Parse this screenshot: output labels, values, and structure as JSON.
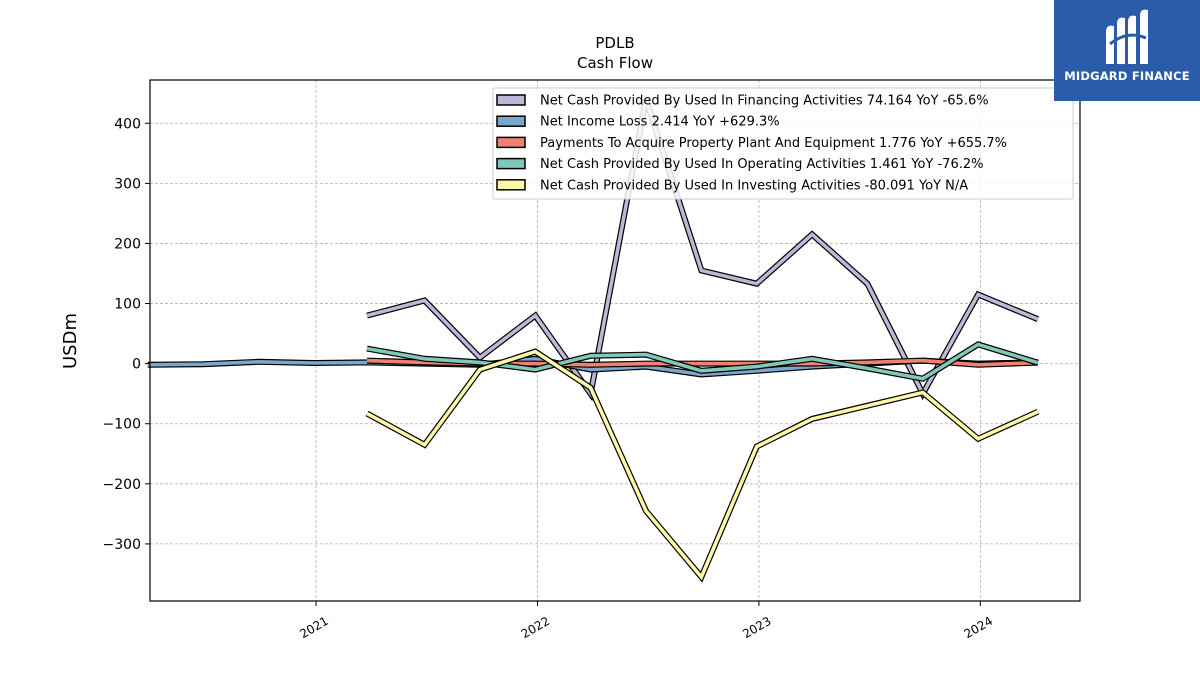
{
  "chart_data": {
    "type": "line",
    "title": "PDLB",
    "subtitle": "Cash Flow",
    "ylabel": "USDm",
    "xlabel": "",
    "xlim": [
      2020.25,
      2024.45
    ],
    "ylim": [
      -395,
      472
    ],
    "yticks": [
      -300,
      -200,
      -100,
      0,
      100,
      200,
      300,
      400
    ],
    "ytick_labels": [
      "−300",
      "−200",
      "−100",
      "0",
      "100",
      "200",
      "300",
      "400"
    ],
    "xticks": [
      2021,
      2022,
      2023,
      2024
    ],
    "xtick_labels": [
      "2021",
      "2022",
      "2023",
      "2024"
    ],
    "grid": true,
    "legend_position": "top-right",
    "series": [
      {
        "name": "Net Cash Provided By Used In Financing Activities",
        "legend_label": "Net Cash Provided By Used In Financing Activities  74.164 YoY -65.6%",
        "color": "#bcb8d8",
        "x": [
          2021.23,
          2021.49,
          2021.74,
          2021.99,
          2022.24,
          2022.49,
          2022.74,
          2022.99,
          2023.24,
          2023.49,
          2023.74,
          2023.99,
          2024.26
        ],
        "y": [
          80,
          105,
          10,
          80,
          -50,
          440,
          155,
          133,
          215,
          133,
          -50,
          115,
          74
        ]
      },
      {
        "name": "Net Income Loss",
        "legend_label": "Net Income Loss  2.414 YoY +629.3%",
        "color": "#7ba7cc",
        "x": [
          2020.24,
          2020.49,
          2020.74,
          2020.99,
          2021.23,
          2021.49,
          2021.74,
          2021.99,
          2022.24,
          2022.49,
          2022.74,
          2022.99,
          2023.24,
          2023.49,
          2023.74,
          2023.99,
          2024.26
        ],
        "y": [
          -2,
          -1,
          3,
          1,
          2,
          0,
          -2,
          8,
          -10,
          -5,
          -18,
          -12,
          -5,
          0,
          5,
          0,
          2.4
        ]
      },
      {
        "name": "Payments To Acquire Property Plant And Equipment",
        "legend_label": "Payments To Acquire Property Plant And Equipment  1.776 YoY +655.7%",
        "color": "#f08070",
        "x": [
          2021.23,
          2021.49,
          2021.74,
          2021.99,
          2022.24,
          2022.49,
          2022.74,
          2022.99,
          2023.24,
          2023.49,
          2023.74,
          2023.99,
          2024.26
        ],
        "y": [
          5,
          2,
          0,
          0,
          -2,
          0,
          0,
          0,
          0,
          2,
          5,
          -2,
          1.8
        ]
      },
      {
        "name": "Net Cash Provided By Used In Operating Activities",
        "legend_label": "Net Cash Provided By Used In Operating Activities  1.461 YoY -76.2%",
        "color": "#80c8b8",
        "x": [
          2021.23,
          2021.49,
          2021.74,
          2021.99,
          2022.24,
          2022.49,
          2022.74,
          2022.99,
          2023.24,
          2023.49,
          2023.74,
          2023.99,
          2024.26
        ],
        "y": [
          25,
          8,
          2,
          -10,
          13,
          15,
          -12,
          -5,
          8,
          -8,
          -25,
          32,
          1.5
        ]
      },
      {
        "name": "Net Cash Provided By Used In Investing Activities",
        "legend_label": "Net Cash Provided By Used In Investing Activities  -80.091 YoY N/A",
        "color": "#fdf8a8",
        "x": [
          2021.23,
          2021.49,
          2021.74,
          2021.99,
          2022.24,
          2022.49,
          2022.74,
          2022.99,
          2023.24,
          2023.49,
          2023.74,
          2023.99,
          2024.26
        ],
        "y": [
          -83,
          -135,
          -10,
          20,
          -40,
          -245,
          -355,
          -138,
          -92,
          -70,
          -48,
          -125,
          -80
        ]
      }
    ]
  },
  "logo": {
    "text": "MIDGARD FINANCE",
    "background": "#2a5caa"
  }
}
